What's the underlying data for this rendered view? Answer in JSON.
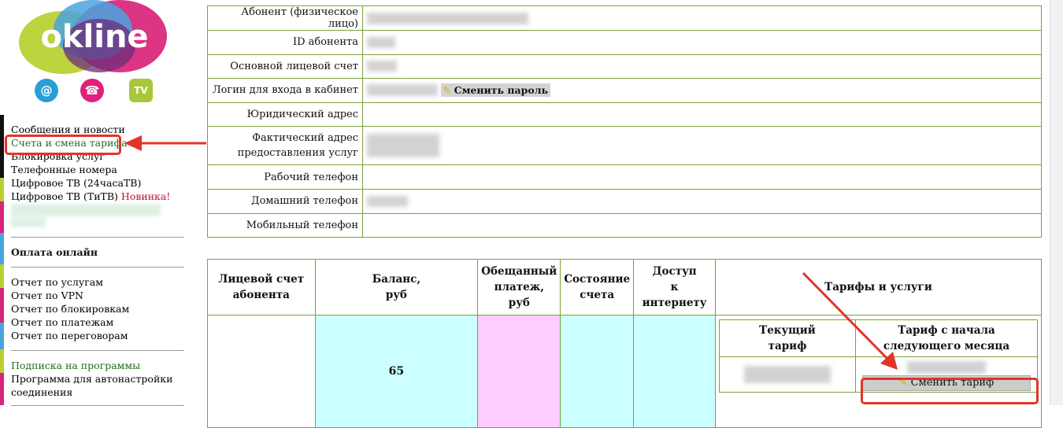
{
  "brand": {
    "name": "okline"
  },
  "service_icons": [
    {
      "name": "email-icon",
      "glyph": "@",
      "color": "#2a9fd6"
    },
    {
      "name": "phone-icon",
      "glyph": "☎",
      "color": "#e0207a"
    },
    {
      "name": "tv-icon",
      "glyph": "TV",
      "color": "#a8c83a"
    }
  ],
  "sidebar": {
    "items": [
      {
        "label": "Сообщения и новости"
      },
      {
        "label": "Счета и смена тарифа"
      },
      {
        "label": "Блокировка услуг"
      },
      {
        "label": "Телефонные номера"
      },
      {
        "label": "Цифровое ТВ (24часаТВ)"
      },
      {
        "label": "Цифровое ТВ (ТиТВ)",
        "badge": "Новинка!"
      }
    ],
    "payment_label": "Оплата онлайн",
    "reports": [
      {
        "label": "Отчет по услугам"
      },
      {
        "label": "Отчет по VPN"
      },
      {
        "label": "Отчет по блокировкам"
      },
      {
        "label": "Отчет по платежам"
      },
      {
        "label": "Отчет по переговорам"
      }
    ],
    "extra": [
      {
        "label": "Подписка на программы"
      },
      {
        "label": "Программа для автонастройки"
      },
      {
        "label": "соединения"
      }
    ]
  },
  "profile": {
    "rows": [
      {
        "label": "Абонент (физическое лицо)"
      },
      {
        "label": "ID абонента"
      },
      {
        "label": "Основной лицевой счет"
      },
      {
        "label": "Логин для входа в кабинет"
      },
      {
        "label": "Юридический адрес"
      },
      {
        "label": "Фактический адрес"
      },
      {
        "label": "предоставления услуг"
      },
      {
        "label": "Рабочий телефон"
      },
      {
        "label": "Домашний телефон"
      },
      {
        "label": "Мобильный телефон"
      }
    ],
    "change_password_label": "Сменить пароль"
  },
  "account_table": {
    "headers": [
      "Лицевой счет",
      "абонента",
      "Баланс,",
      "руб",
      "Обещанный",
      "платеж,",
      "руб",
      "Состояние",
      "счета",
      "Доступ",
      "к интернету",
      "Тарифы и услуги"
    ],
    "balance": "65",
    "tariffs": {
      "current_header": [
        "Текущий",
        "тариф"
      ],
      "next_header": [
        "Тариф с начала",
        "следующего месяца"
      ],
      "change_tariff_label": "Сменить тариф"
    }
  },
  "colors": {
    "border": "#7ba23d",
    "balance_bg": "#ccffff",
    "promised_bg": "#ffccff",
    "annotation": "#e2342a",
    "link_green": "#1e6e1e",
    "new_badge": "#c0102a"
  }
}
